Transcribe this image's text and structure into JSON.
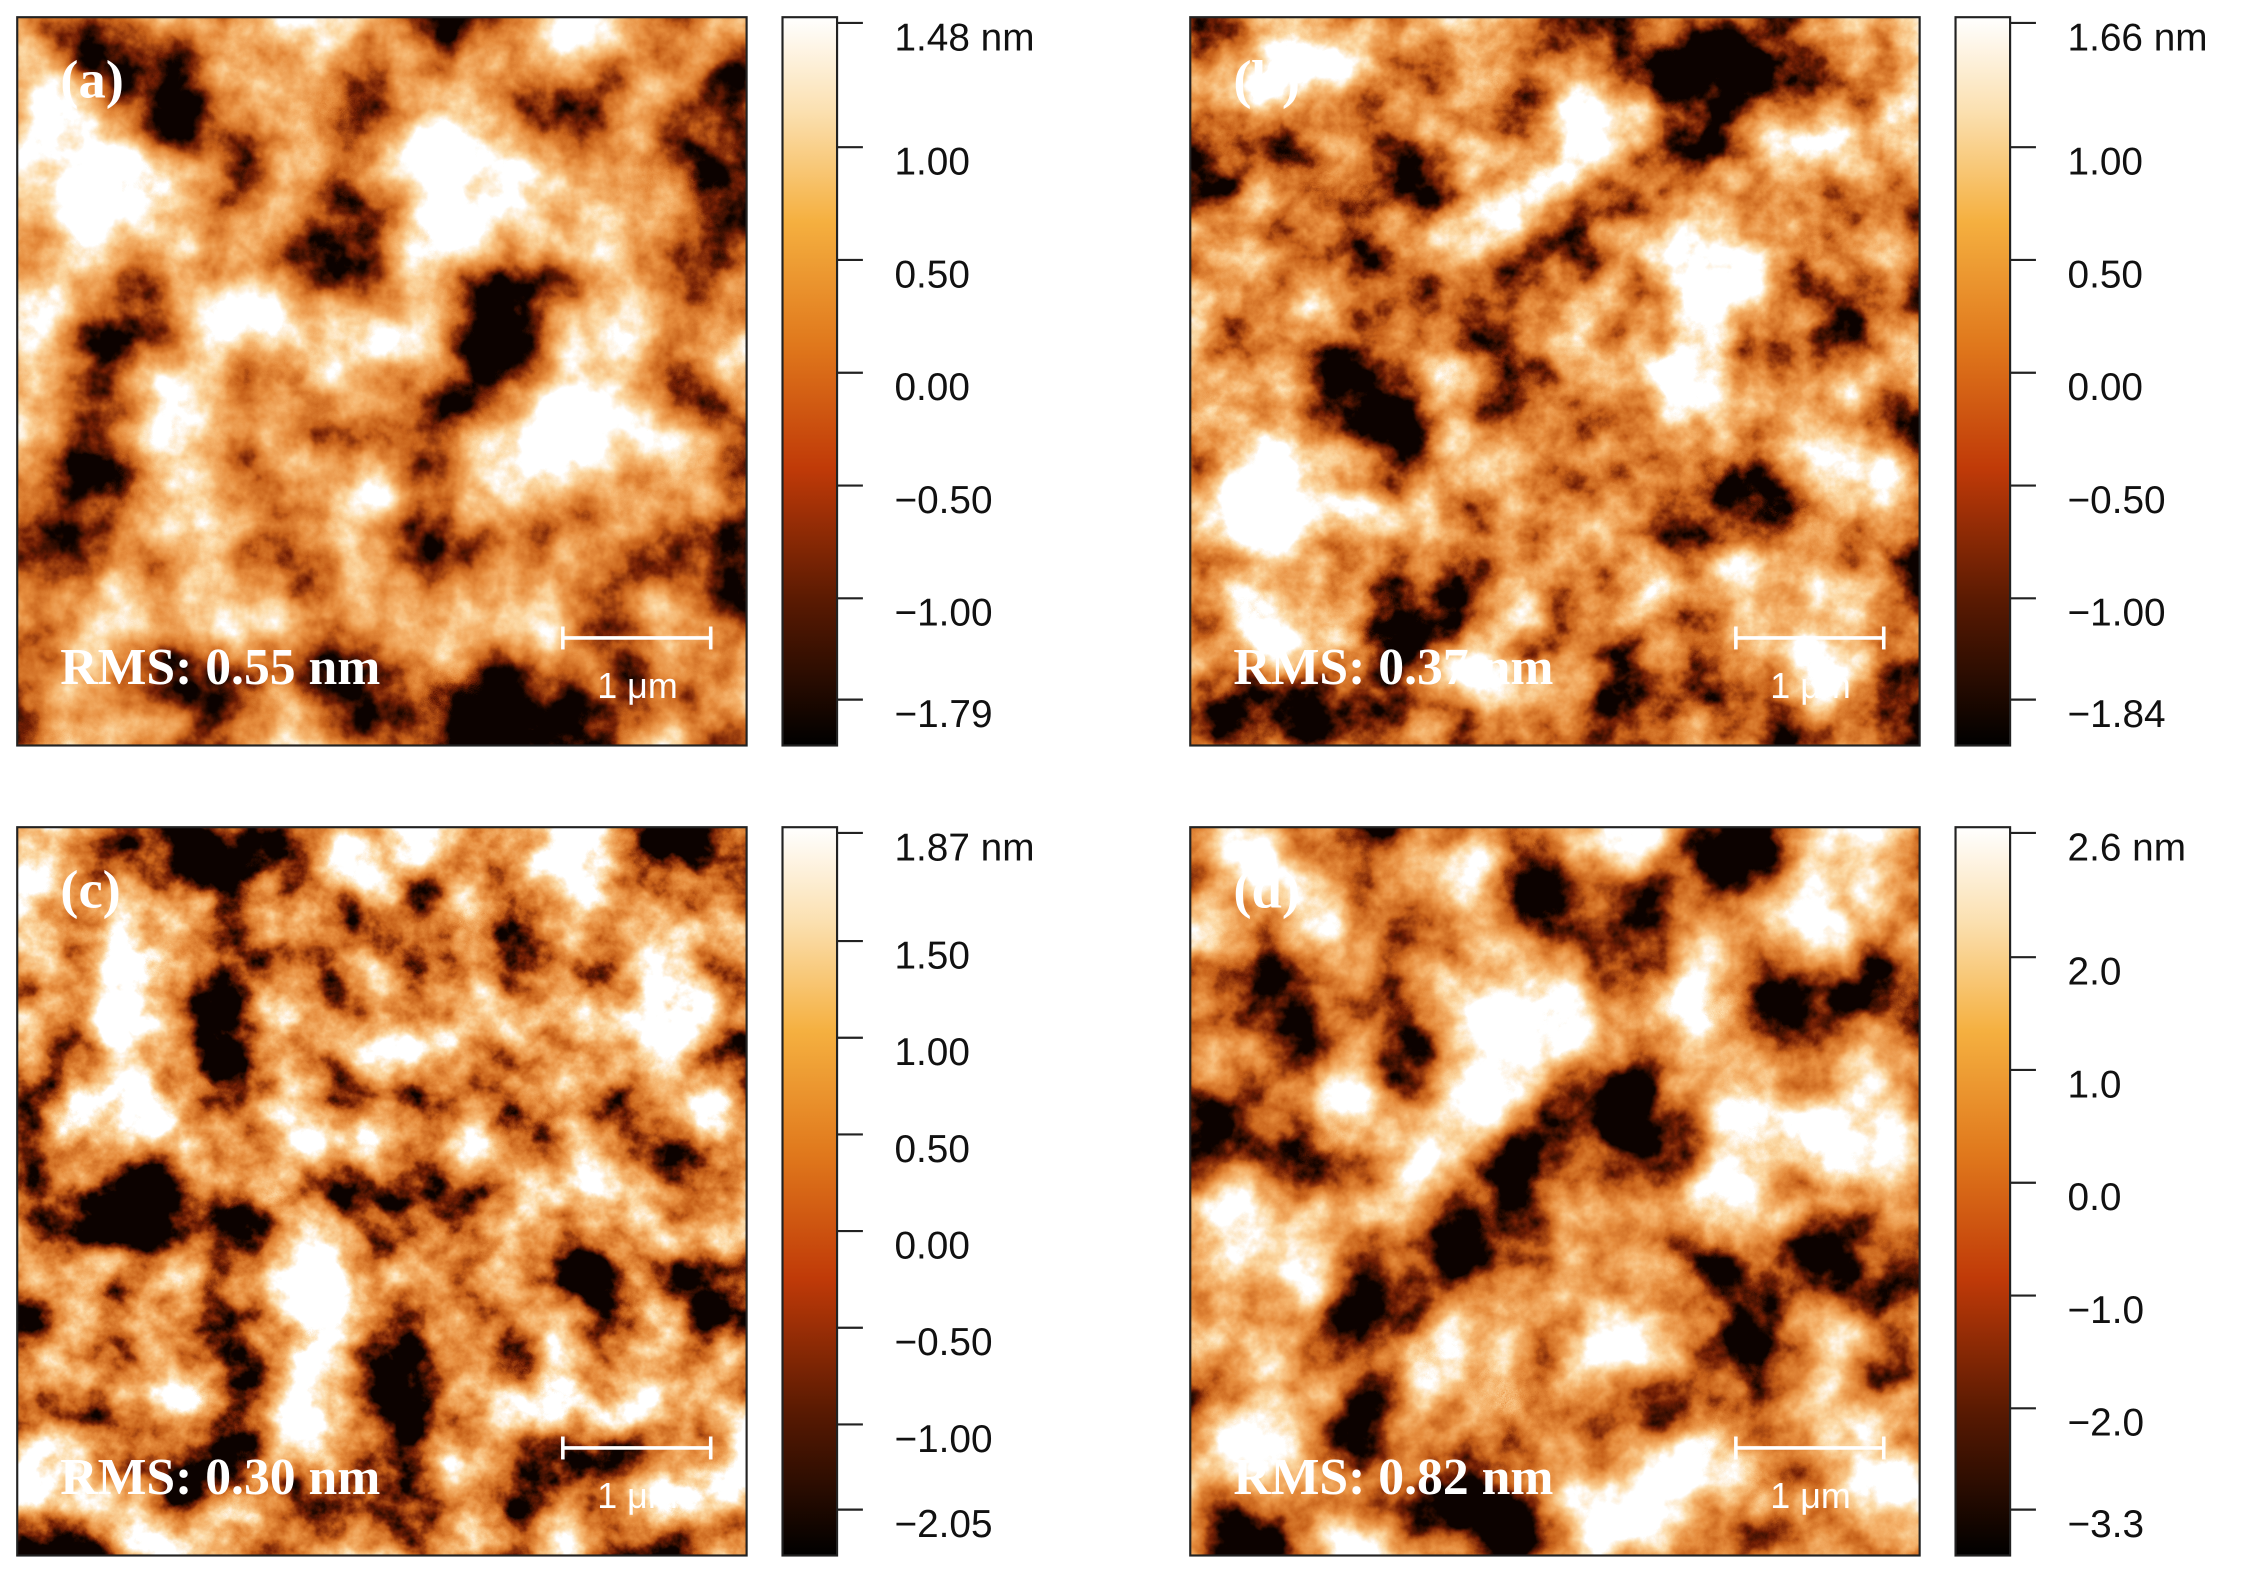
{
  "panels": [
    {
      "label": "(a)",
      "rms": "RMS: 0.55 nm",
      "scale_bar": "1 μm",
      "colorbar_ticks": [
        "1.48 nm",
        "1.00",
        "0.50",
        "0.00",
        "−0.50",
        "−1.00",
        "−1.79"
      ]
    },
    {
      "label": "(b)",
      "rms": "RMS: 0.37 nm",
      "scale_bar": "1 μm",
      "colorbar_ticks": [
        "1.66 nm",
        "1.00",
        "0.50",
        "0.00",
        "−0.50",
        "−1.00",
        "−1.84"
      ]
    },
    {
      "label": "(c)",
      "rms": "RMS: 0.30 nm",
      "scale_bar": "1 μm",
      "colorbar_ticks": [
        "1.87 nm",
        "1.50",
        "1.00",
        "0.50",
        "0.00",
        "−0.50",
        "−1.00",
        "−2.05"
      ]
    },
    {
      "label": "(d)",
      "rms": "RMS: 0.82 nm",
      "scale_bar": "1 μm",
      "colorbar_ticks": [
        "2.6 nm",
        "2.0",
        "1.0",
        "0.0",
        "−1.0",
        "−2.0",
        "−3.3"
      ]
    }
  ]
}
